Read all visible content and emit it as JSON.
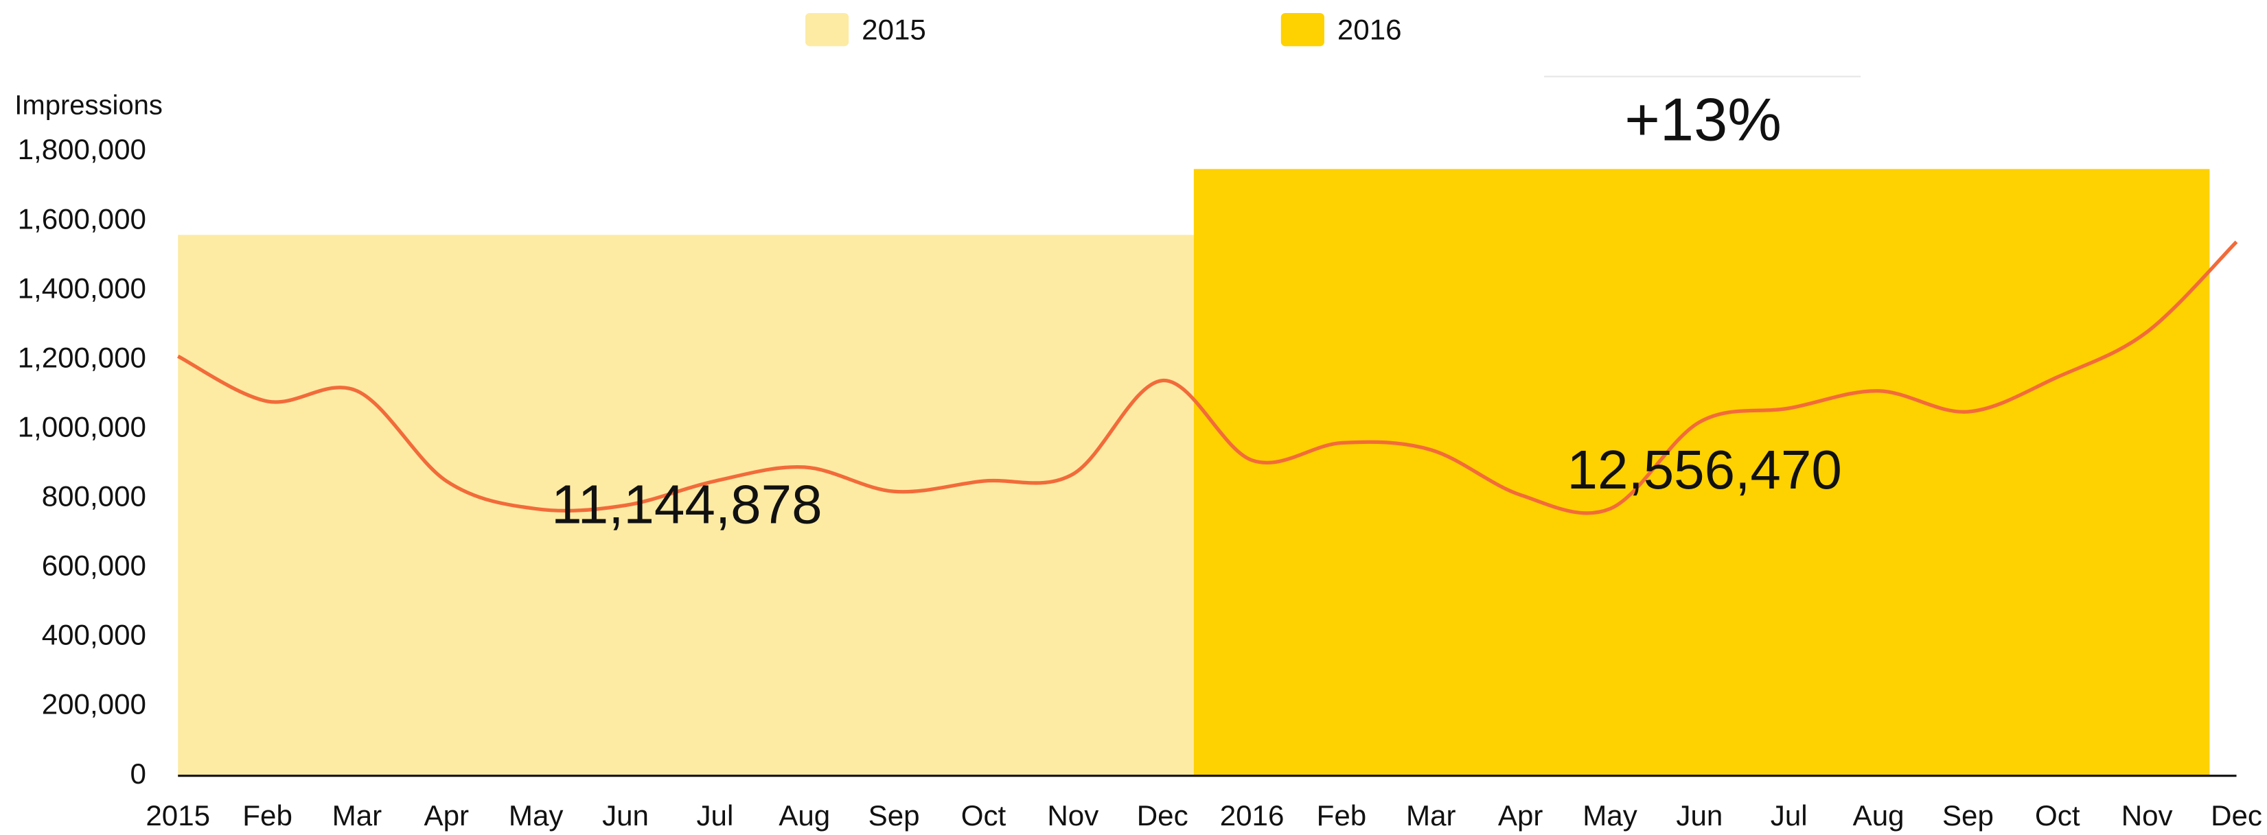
{
  "chart_data": {
    "type": "line",
    "y_label": "Impressions",
    "categories": [
      "2015",
      "Feb",
      "Mar",
      "Apr",
      "May",
      "Jun",
      "Jul",
      "Aug",
      "Sep",
      "Oct",
      "Nov",
      "Dec",
      "2016",
      "Feb",
      "Mar",
      "Apr",
      "May",
      "Jun",
      "Jul",
      "Aug",
      "Sep",
      "Oct",
      "Nov",
      "Dec"
    ],
    "line": {
      "color": "#f26b3a",
      "values": [
        1210000,
        1080000,
        1110000,
        850000,
        770000,
        780000,
        850000,
        890000,
        820000,
        850000,
        870000,
        1140000,
        910000,
        960000,
        940000,
        810000,
        770000,
        1020000,
        1060000,
        1110000,
        1050000,
        1150000,
        1280000,
        1540000
      ]
    },
    "series": [
      {
        "name": "2015",
        "color": "#fdeba4",
        "value": 1560000,
        "total_label": "11,144,878"
      },
      {
        "name": "2016",
        "color": "#fed100",
        "value": 1750000,
        "total_label": "12,556,470"
      }
    ],
    "change_label": "+13%",
    "ylim": [
      0,
      1800000
    ],
    "yticks": [
      0,
      {
        "value": 200000,
        "label": "200,000"
      },
      {
        "value": 400000,
        "label": "400,000"
      },
      {
        "value": 600000,
        "label": "600,000"
      },
      {
        "value": 800000,
        "label": "800,000"
      },
      {
        "value": 1000000,
        "label": "1,000,000"
      },
      {
        "value": 1200000,
        "label": "1,200,000"
      },
      {
        "value": 1400000,
        "label": "1,400,000"
      },
      {
        "value": 1600000,
        "label": "1,600,000"
      },
      {
        "value": 1800000,
        "label": "1,800,000"
      }
    ],
    "grid": false
  }
}
